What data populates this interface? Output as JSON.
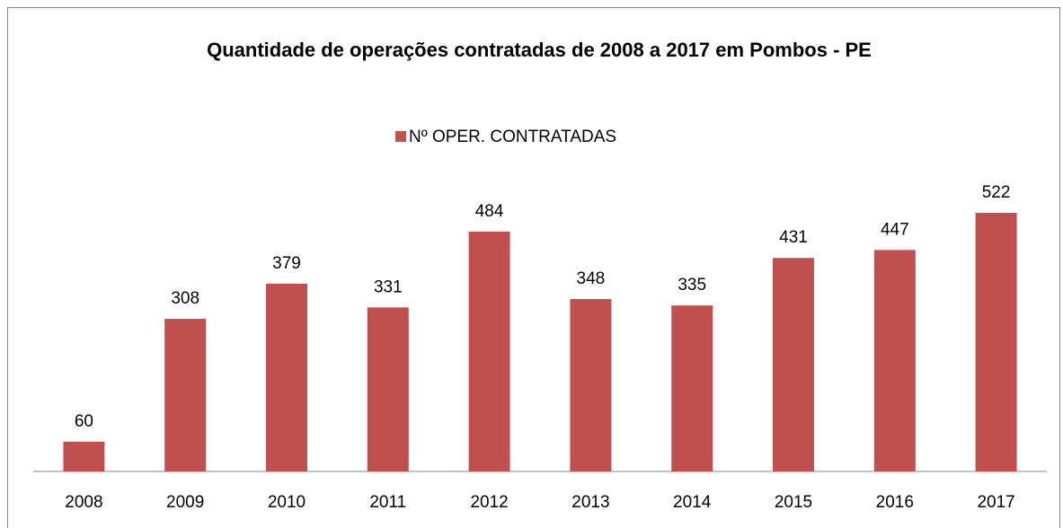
{
  "chart_data": {
    "type": "bar",
    "title": "Quantidade de operações contratadas de 2008 a 2017 em Pombos - PE",
    "categories": [
      "2008",
      "2009",
      "2010",
      "2011",
      "2012",
      "2013",
      "2014",
      "2015",
      "2016",
      "2017"
    ],
    "series": [
      {
        "name": "Nº OPER. CONTRATADAS",
        "color": "#c0504d",
        "values": [
          60,
          308,
          379,
          331,
          484,
          348,
          335,
          431,
          447,
          522
        ]
      }
    ],
    "legend": "top"
  }
}
